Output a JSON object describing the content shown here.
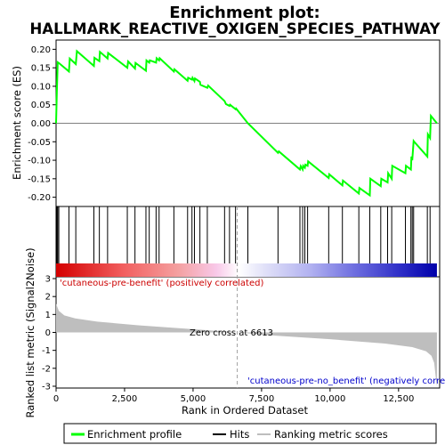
{
  "chart_data": {
    "type": "line",
    "title_line1": "Enrichment plot:",
    "title_line2": "HALLMARK_REACTIVE_OXIGEN_SPECIES_PATHWAY",
    "top_panel": {
      "ylabel": "Enrichment score (ES)",
      "ylim": [
        -0.225,
        0.225
      ],
      "yticks": [
        -0.2,
        -0.15,
        -0.1,
        -0.05,
        0.0,
        0.05,
        0.1,
        0.15,
        0.2
      ],
      "ytick_labels": [
        "-0.20",
        "-0.15",
        "-0.10",
        "-0.05",
        "0.00",
        "0.05",
        "0.10",
        "0.15",
        "0.20"
      ],
      "series_name": "Enrichment profile",
      "line_color": "#00ff00",
      "x": [
        0,
        30,
        60,
        100,
        470,
        500,
        720,
        760,
        1380,
        1400,
        1580,
        1600,
        1880,
        1900,
        2600,
        2630,
        2880,
        2900,
        3280,
        3300,
        3400,
        3420,
        3650,
        3670,
        3760,
        3780,
        4300,
        4320,
        4800,
        4820,
        4960,
        4980,
        5050,
        5070,
        5250,
        5270,
        5520,
        5550,
        6150,
        6200,
        6330,
        6350,
        6550,
        6570,
        7000,
        8100,
        8130,
        8900,
        8930,
        9000,
        9020,
        9080,
        9100,
        9180,
        9200,
        9950,
        9970,
        10450,
        10470,
        11050,
        11070,
        11450,
        11470,
        11850,
        11870,
        12100,
        12120,
        12250,
        12270,
        12750,
        12770,
        12950,
        12970,
        13000,
        13050,
        13070,
        13550,
        13570,
        13650,
        13680,
        13900
      ],
      "y": [
        0.0,
        0.09,
        0.165,
        0.163,
        0.14,
        0.175,
        0.16,
        0.195,
        0.155,
        0.177,
        0.168,
        0.193,
        0.175,
        0.19,
        0.15,
        0.167,
        0.148,
        0.163,
        0.142,
        0.17,
        0.164,
        0.17,
        0.164,
        0.176,
        0.17,
        0.176,
        0.14,
        0.146,
        0.115,
        0.123,
        0.118,
        0.123,
        0.114,
        0.121,
        0.112,
        0.104,
        0.096,
        0.102,
        0.06,
        0.052,
        0.047,
        0.05,
        0.038,
        0.04,
        0.0,
        -0.08,
        -0.076,
        -0.125,
        -0.116,
        -0.125,
        -0.115,
        -0.12,
        -0.112,
        -0.115,
        -0.103,
        -0.148,
        -0.138,
        -0.168,
        -0.155,
        -0.19,
        -0.175,
        -0.195,
        -0.15,
        -0.17,
        -0.15,
        -0.16,
        -0.135,
        -0.15,
        -0.115,
        -0.135,
        -0.115,
        -0.125,
        -0.09,
        -0.1,
        -0.048,
        -0.05,
        -0.09,
        -0.03,
        -0.04,
        0.02,
        0.0
      ]
    },
    "hits": [
      30,
      60,
      100,
      470,
      720,
      1380,
      1580,
      1880,
      2600,
      2880,
      3280,
      3400,
      3650,
      3760,
      4300,
      4800,
      4960,
      5050,
      5250,
      5520,
      6150,
      6330,
      6550,
      7000,
      8100,
      8900,
      9000,
      9080,
      9180,
      9950,
      10450,
      11050,
      11450,
      11850,
      12100,
      12250,
      12750,
      12950,
      13000,
      13050,
      13550,
      13650
    ],
    "bottom_panel": {
      "ylabel": "Ranked list metric (Signal2Noise)",
      "ylim": [
        -3.1,
        3.1
      ],
      "yticks": [
        -3,
        -2,
        -1,
        0,
        1,
        2,
        3
      ],
      "ytick_labels": [
        "-3",
        "-2",
        "-1",
        "0",
        "1",
        "2",
        "3"
      ],
      "positive_label": "'cutaneous-pre-benefit' (positively correlated)",
      "negative_label": "'cutaneous-pre-no_benefit' (negatively correlated)",
      "zero_cross_label": "Zero cross at 6613",
      "zero_cross": 6613,
      "metric_x": [
        0,
        100,
        300,
        700,
        1500,
        3000,
        5000,
        6613,
        8000,
        10000,
        12000,
        13000,
        13500,
        13700,
        13800,
        13850,
        13900
      ],
      "metric_y": [
        1.6,
        1.2,
        0.95,
        0.78,
        0.6,
        0.4,
        0.18,
        0.0,
        -0.18,
        -0.38,
        -0.62,
        -0.82,
        -1.05,
        -1.3,
        -1.7,
        -2.4,
        -3.0
      ]
    },
    "xlabel": "Rank in Ordered Dataset",
    "xlim": [
      0,
      14000
    ],
    "n_genes": 13900,
    "xticks": [
      0,
      2500,
      5000,
      7500,
      10000,
      12500
    ],
    "xtick_labels": [
      "0",
      "2,500",
      "5,000",
      "7,500",
      "10,000",
      "12,500"
    ],
    "legend": [
      {
        "label": "Enrichment profile",
        "color": "#00ff00"
      },
      {
        "label": "Hits",
        "color": "#000000"
      },
      {
        "label": "Ranking metric scores",
        "color": "#bebebe"
      }
    ]
  }
}
